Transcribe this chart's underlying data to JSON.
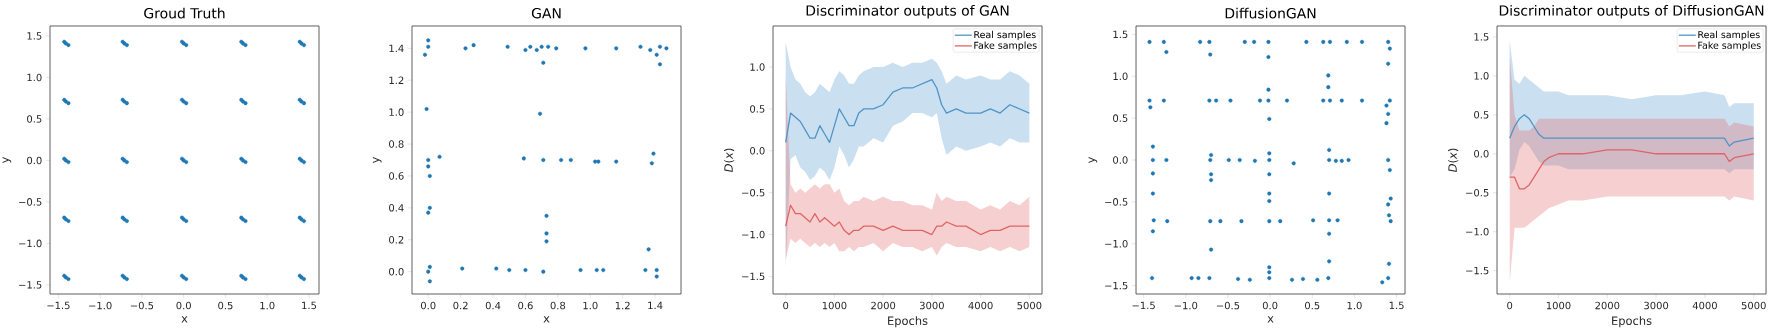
{
  "chart_data": [
    {
      "type": "scatter",
      "title": "Groud Truth",
      "xlabel": "x",
      "ylabel": "y",
      "color": "#1f77b4",
      "marker": "circle",
      "xlim": [
        -1.6,
        1.62
      ],
      "ylim": [
        -1.61,
        1.62
      ],
      "xticks": [
        {
          "value": -1.5,
          "label": "−1.5"
        },
        {
          "value": -1.0,
          "label": "−1.0"
        },
        {
          "value": -0.5,
          "label": "−0.5"
        },
        {
          "value": 0,
          "label": "0.0"
        },
        {
          "value": 0.5,
          "label": "0.5"
        },
        {
          "value": 1.0,
          "label": "1.0"
        },
        {
          "value": 1.5,
          "label": "1.5"
        }
      ],
      "yticks": [
        {
          "value": -1.5,
          "label": "−1.5"
        },
        {
          "value": -1.0,
          "label": "−1.0"
        },
        {
          "value": -0.5,
          "label": "−0.5"
        },
        {
          "value": 0,
          "label": "0.0"
        },
        {
          "value": 0.5,
          "label": "0.5"
        },
        {
          "value": 1.0,
          "label": "1.0"
        },
        {
          "value": 1.5,
          "label": "1.5"
        }
      ],
      "x": [
        -1.41,
        -1.38,
        -1.43,
        -0.71,
        -0.68,
        -0.73,
        0,
        0.03,
        -0.02,
        0.71,
        0.74,
        0.69,
        1.41,
        1.44,
        1.39,
        -1.41,
        -1.38,
        -1.43,
        -0.71,
        -0.68,
        -0.73,
        0,
        0.03,
        -0.02,
        0.71,
        0.74,
        0.69,
        1.41,
        1.44,
        1.39,
        -1.41,
        -1.38,
        -1.43,
        -0.71,
        -0.68,
        -0.73,
        0,
        0.03,
        -0.02,
        0.71,
        0.74,
        0.69,
        1.41,
        1.44,
        1.39,
        -1.41,
        -1.38,
        -1.43,
        -0.71,
        -0.68,
        -0.73,
        0,
        0.03,
        -0.02,
        0.71,
        0.74,
        0.69,
        1.41,
        1.44,
        1.39,
        -1.41,
        -1.38,
        -1.43,
        -0.71,
        -0.68,
        -0.73,
        0,
        0.03,
        -0.02,
        0.71,
        0.74,
        0.69,
        1.41,
        1.44,
        1.39
      ],
      "values": [
        1.41,
        1.39,
        1.43,
        1.41,
        1.39,
        1.43,
        1.41,
        1.39,
        1.43,
        1.41,
        1.39,
        1.43,
        1.41,
        1.39,
        1.43,
        0.71,
        0.69,
        0.73,
        0.71,
        0.69,
        0.73,
        0.71,
        0.69,
        0.73,
        0.71,
        0.69,
        0.73,
        0.71,
        0.69,
        0.73,
        0,
        -0.02,
        0.02,
        0,
        -0.02,
        0.02,
        0,
        -0.02,
        0.02,
        0,
        -0.02,
        0.02,
        0,
        -0.02,
        0.02,
        -0.71,
        -0.73,
        -0.69,
        -0.71,
        -0.73,
        -0.69,
        -0.71,
        -0.73,
        -0.69,
        -0.71,
        -0.73,
        -0.69,
        -0.71,
        -0.73,
        -0.69,
        -1.41,
        -1.43,
        -1.39,
        -1.41,
        -1.43,
        -1.39,
        -1.41,
        -1.43,
        -1.39,
        -1.41,
        -1.43,
        -1.39,
        -1.41,
        -1.43,
        -1.39
      ]
    },
    {
      "type": "scatter",
      "title": "GAN",
      "xlabel": "x",
      "ylabel": "y",
      "color": "#1f77b4",
      "marker": "circle",
      "xlim": [
        -0.1,
        1.56
      ],
      "ylim": [
        -0.14,
        1.54
      ],
      "xticks": [
        {
          "value": 0,
          "label": "0.0"
        },
        {
          "value": 0.2,
          "label": "0.2"
        },
        {
          "value": 0.4,
          "label": "0.4"
        },
        {
          "value": 0.6,
          "label": "0.6"
        },
        {
          "value": 0.8,
          "label": "0.8"
        },
        {
          "value": 1.0,
          "label": "1.0"
        },
        {
          "value": 1.2,
          "label": "1.2"
        },
        {
          "value": 1.4,
          "label": "1.4"
        }
      ],
      "yticks": [
        {
          "value": 0,
          "label": "0.0"
        },
        {
          "value": 0.2,
          "label": "0.2"
        },
        {
          "value": 0.4,
          "label": "0.4"
        },
        {
          "value": 0.6,
          "label": "0.6"
        },
        {
          "value": 0.8,
          "label": "0.8"
        },
        {
          "value": 1.0,
          "label": "1.0"
        },
        {
          "value": 1.2,
          "label": "1.2"
        },
        {
          "value": 1.4,
          "label": "1.4"
        }
      ],
      "x": [
        0,
        0,
        -0.02,
        0.23,
        0.28,
        0.49,
        0.6,
        0.63,
        0.67,
        0.7,
        0.74,
        0.79,
        0.71,
        0.97,
        1.16,
        1.31,
        1.37,
        1.43,
        1.47,
        1.41,
        1.43,
        -0.01,
        0.69,
        0,
        0,
        0.01,
        0.07,
        0.59,
        0.71,
        0.82,
        0.88,
        1.03,
        1.05,
        1.16,
        1.38,
        1.39,
        0.01,
        0,
        0.73,
        0.73,
        0.73,
        1.36,
        0,
        0.01,
        0.01,
        0.21,
        0.42,
        0.5,
        0.6,
        0.71,
        0.94,
        1.04,
        1.08,
        1.34,
        1.41,
        1.41
      ],
      "values": [
        1.41,
        1.45,
        1.36,
        1.4,
        1.42,
        1.41,
        1.39,
        1.41,
        1.39,
        1.41,
        1.41,
        1.4,
        1.31,
        1.4,
        1.4,
        1.41,
        1.39,
        1.41,
        1.4,
        1.36,
        1.3,
        1.02,
        0.99,
        0.7,
        0.66,
        0.6,
        0.72,
        0.71,
        0.7,
        0.7,
        0.7,
        0.69,
        0.69,
        0.69,
        0.68,
        0.74,
        0.4,
        0.37,
        0.35,
        0.24,
        0.19,
        0.14,
        0,
        0.03,
        -0.06,
        0.02,
        0.02,
        0.01,
        0.01,
        0,
        0.01,
        0.01,
        0.01,
        0.01,
        0.01,
        -0.03
      ]
    },
    {
      "type": "line",
      "title": "Discriminator outputs of GAN",
      "xlabel": "Epochs",
      "ylabel": "*D*(*x*)",
      "legend": "top right",
      "xlim": [
        -260,
        5260
      ],
      "ylim": [
        -1.71,
        1.49
      ],
      "xticks": [
        0,
        1000,
        2000,
        3000,
        4000,
        5000
      ],
      "yticks": [
        {
          "value": -1.5,
          "label": "−1.5"
        },
        {
          "value": -1.0,
          "label": "−1.0"
        },
        {
          "value": -0.5,
          "label": "−0.5"
        },
        {
          "value": 0,
          "label": "0.0"
        },
        {
          "value": 0.5,
          "label": "0.5"
        },
        {
          "value": 1.0,
          "label": "1.0"
        }
      ],
      "x": [
        0,
        100,
        200,
        300,
        400,
        500,
        600,
        700,
        800,
        900,
        1000,
        1100,
        1200,
        1300,
        1400,
        1500,
        1600,
        1800,
        2000,
        2200,
        2400,
        2600,
        2800,
        3000,
        3100,
        3200,
        3300,
        3500,
        3700,
        4000,
        4200,
        4400,
        4600,
        4800,
        5000
      ],
      "series": [
        {
          "name": "Real samples",
          "color": "#4f94c9",
          "values": [
            0.1,
            0.45,
            0.4,
            0.35,
            0.25,
            0.15,
            0.15,
            0.3,
            0.2,
            0.1,
            0.3,
            0.5,
            0.4,
            0.3,
            0.3,
            0.45,
            0.5,
            0.5,
            0.55,
            0.7,
            0.75,
            0.75,
            0.8,
            0.85,
            0.75,
            0.55,
            0.45,
            0.5,
            0.45,
            0.45,
            0.5,
            0.45,
            0.55,
            0.5,
            0.45
          ],
          "upper": [
            1.3,
            1.0,
            0.85,
            0.8,
            0.7,
            0.65,
            0.7,
            0.8,
            0.75,
            0.7,
            0.85,
            0.95,
            0.9,
            0.8,
            0.8,
            0.9,
            0.95,
            1.0,
            1.0,
            1.05,
            1.0,
            1.05,
            1.05,
            1.1,
            1.05,
            0.95,
            0.8,
            0.9,
            0.85,
            0.9,
            0.85,
            0.85,
            0.95,
            0.9,
            0.8
          ],
          "lower": [
            -1.4,
            -0.1,
            -0.05,
            -0.2,
            -0.25,
            -0.35,
            -0.3,
            -0.2,
            -0.25,
            -0.35,
            -0.2,
            0.05,
            -0.05,
            -0.2,
            -0.1,
            0.05,
            0.05,
            0.15,
            0.1,
            0.3,
            0.35,
            0.45,
            0.45,
            0.4,
            0.45,
            0.15,
            -0.05,
            0.05,
            0.0,
            0.05,
            0.1,
            0.05,
            0.15,
            0.1,
            0.1
          ]
        },
        {
          "name": "Fake samples",
          "color": "#e06464",
          "values": [
            -0.9,
            -0.65,
            -0.75,
            -0.75,
            -0.8,
            -0.85,
            -0.75,
            -0.85,
            -0.8,
            -0.85,
            -0.9,
            -0.85,
            -0.95,
            -1.0,
            -0.95,
            -0.95,
            -0.9,
            -0.9,
            -0.95,
            -0.9,
            -0.95,
            -0.95,
            -0.95,
            -1.0,
            -0.9,
            -0.9,
            -0.85,
            -0.9,
            -0.9,
            -1.0,
            -0.95,
            -0.95,
            -0.9,
            -0.9,
            -0.9
          ],
          "upper": [
            0.9,
            -0.4,
            -0.5,
            -0.45,
            -0.5,
            -0.45,
            -0.4,
            -0.45,
            -0.4,
            -0.4,
            -0.5,
            -0.45,
            -0.6,
            -0.65,
            -0.6,
            -0.6,
            -0.55,
            -0.6,
            -0.55,
            -0.6,
            -0.6,
            -0.65,
            -0.65,
            -0.7,
            -0.5,
            -0.6,
            -0.55,
            -0.6,
            -0.6,
            -0.7,
            -0.65,
            -0.7,
            -0.6,
            -0.65,
            -0.55
          ],
          "lower": [
            -1.3,
            -1.05,
            -1.1,
            -1.05,
            -1.1,
            -1.15,
            -1.1,
            -1.15,
            -1.1,
            -1.15,
            -1.1,
            -1.2,
            -1.2,
            -1.15,
            -1.2,
            -1.15,
            -1.15,
            -1.1,
            -1.2,
            -1.1,
            -1.15,
            -1.15,
            -1.2,
            -1.15,
            -1.25,
            -1.15,
            -1.1,
            -1.15,
            -1.15,
            -1.2,
            -1.15,
            -1.2,
            -1.15,
            -1.2,
            -1.15
          ]
        }
      ]
    },
    {
      "type": "scatter",
      "title": "DiffusionGAN",
      "xlabel": "x",
      "ylabel": "y",
      "color": "#1f77b4",
      "marker": "circle",
      "xlim": [
        -1.59,
        1.6
      ],
      "ylim": [
        -1.6,
        1.6
      ],
      "xticks": [
        {
          "value": -1.5,
          "label": "−1.5"
        },
        {
          "value": -1.0,
          "label": "−1.0"
        },
        {
          "value": -0.5,
          "label": "−0.5"
        },
        {
          "value": 0,
          "label": "0.0"
        },
        {
          "value": 0.5,
          "label": "0.5"
        },
        {
          "value": 1.0,
          "label": "1.0"
        },
        {
          "value": 1.5,
          "label": "1.5"
        }
      ],
      "yticks": [
        {
          "value": -1.5,
          "label": "−1.5"
        },
        {
          "value": -1.0,
          "label": "−1.0"
        },
        {
          "value": -0.5,
          "label": "−0.5"
        },
        {
          "value": 0,
          "label": "0.0"
        },
        {
          "value": 0.5,
          "label": "0.5"
        },
        {
          "value": 1.0,
          "label": "1.0"
        },
        {
          "value": 1.5,
          "label": "1.5"
        }
      ],
      "x": [
        -1.43,
        -1.26,
        -0.83,
        -0.72,
        -0.3,
        -0.19,
        -0.02,
        0.43,
        0.63,
        0.71,
        0.91,
        1.09,
        1.4,
        -1.23,
        -0.71,
        -0.02,
        1.4,
        1.42,
        -1.43,
        -1.26,
        -0.72,
        -0.64,
        -0.47,
        -0.12,
        -0.02,
        0.2,
        0.63,
        0.71,
        0.85,
        1.09,
        1.42,
        -0.02,
        0.69,
        0.69,
        -1.42,
        -0.01,
        1.4,
        1.38,
        1.38,
        -1.39,
        -1.39,
        -1.23,
        -0.71,
        -0.7,
        -0.49,
        -0.36,
        -0.18,
        -0.01,
        -0.01,
        0.28,
        0.7,
        0.7,
        0.78,
        0.85,
        0.93,
        1.4,
        -1.39,
        -0.7,
        -0.7,
        -0.01,
        1.42,
        -1.39,
        -0.01,
        -0.01,
        0.7,
        1.43,
        1.4,
        -1.38,
        -1.22,
        -0.71,
        -0.59,
        -0.34,
        -0.01,
        0.12,
        0.51,
        0.7,
        0.8,
        1.43,
        1.41,
        -1.39,
        0.7,
        -0.7,
        0.7,
        1.41,
        -0.01,
        -1.4,
        -0.93,
        -0.85,
        -0.72,
        -0.38,
        -0.24,
        -0.01,
        -0.01,
        0.26,
        0.39,
        0.56,
        0.69,
        1.4,
        1.33
      ],
      "values": [
        1.41,
        1.41,
        1.41,
        1.41,
        1.41,
        1.41,
        1.41,
        1.41,
        1.41,
        1.41,
        1.41,
        1.41,
        1.41,
        1.29,
        1.26,
        1.23,
        1.15,
        1.33,
        0.71,
        0.71,
        0.71,
        0.71,
        0.71,
        0.71,
        0.71,
        0.71,
        0.71,
        0.71,
        0.71,
        0.71,
        0.71,
        0.84,
        1.01,
        0.87,
        0.63,
        0.49,
        0.55,
        0.44,
        0.65,
        0,
        0.16,
        0,
        0,
        0.06,
        0,
        0,
        -0.01,
        0,
        0.08,
        -0.04,
        0.12,
        0,
        -0.01,
        -0.01,
        0,
        0,
        -0.16,
        -0.17,
        -0.24,
        -0.17,
        -0.12,
        -0.4,
        -0.4,
        -0.49,
        -0.4,
        -0.46,
        -0.53,
        -0.72,
        -0.73,
        -0.73,
        -0.73,
        -0.73,
        -0.73,
        -0.73,
        -0.72,
        -0.72,
        -0.72,
        -0.73,
        -0.66,
        -0.85,
        -0.88,
        -1.07,
        -1.21,
        -1.24,
        -1.28,
        -1.41,
        -1.41,
        -1.41,
        -1.41,
        -1.42,
        -1.43,
        -1.41,
        -1.34,
        -1.43,
        -1.42,
        -1.43,
        -1.41,
        -1.41,
        -1.46
      ]
    },
    {
      "type": "line",
      "title": "Discriminator outputs of DiffusionGAN",
      "xlabel": "Epochs",
      "ylabel": "*D*(*x*)",
      "legend": "top right",
      "xlim": [
        -259,
        5252
      ],
      "ylim": [
        -1.8,
        1.64
      ],
      "xticks": [
        0,
        1000,
        2000,
        3000,
        4000,
        5000
      ],
      "yticks": [
        {
          "value": -1.5,
          "label": "−1.5"
        },
        {
          "value": -1.0,
          "label": "−1.0"
        },
        {
          "value": -0.5,
          "label": "−0.5"
        },
        {
          "value": 0,
          "label": "0.0"
        },
        {
          "value": 0.5,
          "label": "0.5"
        },
        {
          "value": 1.0,
          "label": "1.0"
        },
        {
          "value": 1.5,
          "label": "1.5"
        }
      ],
      "x": [
        0,
        100,
        200,
        300,
        400,
        500,
        600,
        700,
        800,
        1000,
        1200,
        1500,
        2000,
        2500,
        3000,
        3500,
        4000,
        4400,
        4500,
        4600,
        5000
      ],
      "series": [
        {
          "name": "Real samples",
          "color": "#4f94c9",
          "values": [
            0.2,
            0.35,
            0.45,
            0.5,
            0.45,
            0.35,
            0.25,
            0.2,
            0.2,
            0.2,
            0.2,
            0.2,
            0.2,
            0.2,
            0.2,
            0.2,
            0.2,
            0.2,
            0.1,
            0.15,
            0.2
          ],
          "upper": [
            1.45,
            0.95,
            0.9,
            1.0,
            0.95,
            0.9,
            0.85,
            0.8,
            0.8,
            0.8,
            0.75,
            0.75,
            0.75,
            0.7,
            0.75,
            0.75,
            0.8,
            0.75,
            0.6,
            0.65,
            0.65
          ],
          "lower": [
            -0.3,
            -0.2,
            0.05,
            0.15,
            0.1,
            0.0,
            -0.1,
            -0.15,
            -0.15,
            -0.15,
            -0.2,
            -0.2,
            -0.2,
            -0.2,
            -0.2,
            -0.2,
            -0.2,
            -0.2,
            -0.25,
            -0.2,
            -0.2
          ]
        },
        {
          "name": "Fake samples",
          "color": "#e06464",
          "values": [
            -0.3,
            -0.3,
            -0.45,
            -0.45,
            -0.4,
            -0.3,
            -0.2,
            -0.1,
            -0.05,
            0.0,
            0.0,
            0.0,
            0.05,
            0.05,
            0.0,
            0.0,
            0.0,
            0.0,
            -0.1,
            -0.05,
            0.0
          ],
          "upper": [
            1.25,
            0.5,
            0.3,
            0.3,
            0.3,
            0.35,
            0.45,
            0.45,
            0.45,
            0.45,
            0.45,
            0.45,
            0.45,
            0.45,
            0.45,
            0.45,
            0.45,
            0.45,
            0.35,
            0.4,
            0.35
          ],
          "lower": [
            -1.65,
            -0.95,
            -0.95,
            -0.95,
            -0.9,
            -0.85,
            -0.8,
            -0.75,
            -0.7,
            -0.65,
            -0.6,
            -0.6,
            -0.55,
            -0.55,
            -0.55,
            -0.55,
            -0.55,
            -0.55,
            -0.6,
            -0.55,
            -0.6
          ]
        }
      ]
    }
  ]
}
